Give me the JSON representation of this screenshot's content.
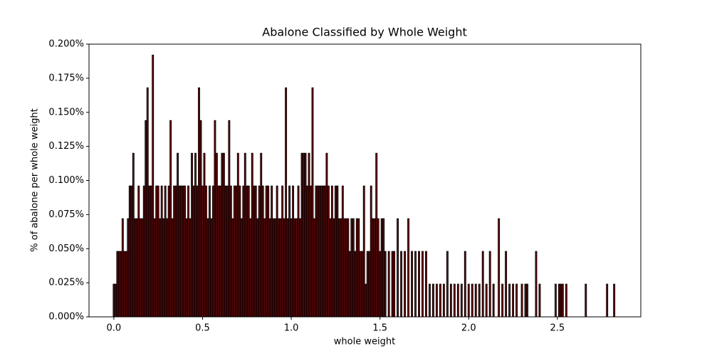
{
  "chart_data": {
    "type": "bar",
    "title": "Abalone Classified by Whole Weight",
    "xlabel": "whole weight",
    "ylabel": "% of abalone per whole weight",
    "color": "#7a0a0a",
    "edgecolor": "#000000",
    "x": [
      0,
      0.01,
      0.02,
      0.03,
      0.04,
      0.05,
      0.06,
      0.07,
      0.08,
      0.09,
      0.1,
      0.11,
      0.12,
      0.13,
      0.14,
      0.15,
      0.16,
      0.17,
      0.18,
      0.19,
      0.2,
      0.21,
      0.22,
      0.23,
      0.24,
      0.25,
      0.26,
      0.27,
      0.28,
      0.29,
      0.3,
      0.31,
      0.32,
      0.33,
      0.34,
      0.35,
      0.36,
      0.37,
      0.38,
      0.39,
      0.4,
      0.41,
      0.42,
      0.43,
      0.44,
      0.45,
      0.46,
      0.47,
      0.48,
      0.49,
      0.5,
      0.51,
      0.52,
      0.53,
      0.54,
      0.55,
      0.56,
      0.57,
      0.58,
      0.59,
      0.6,
      0.61,
      0.62,
      0.63,
      0.64,
      0.65,
      0.66,
      0.67,
      0.68,
      0.69,
      0.7,
      0.71,
      0.72,
      0.73,
      0.74,
      0.75,
      0.76,
      0.77,
      0.78,
      0.79,
      0.8,
      0.81,
      0.82,
      0.83,
      0.84,
      0.85,
      0.86,
      0.87,
      0.88,
      0.89,
      0.9,
      0.91,
      0.92,
      0.93,
      0.94,
      0.95,
      0.96,
      0.97,
      0.98,
      0.99,
      1,
      1.01,
      1.02,
      1.03,
      1.04,
      1.05,
      1.06,
      1.07,
      1.08,
      1.09,
      1.1,
      1.11,
      1.12,
      1.13,
      1.14,
      1.15,
      1.16,
      1.17,
      1.18,
      1.19,
      1.2,
      1.21,
      1.22,
      1.23,
      1.24,
      1.25,
      1.26,
      1.27,
      1.28,
      1.29,
      1.3,
      1.31,
      1.32,
      1.33,
      1.34,
      1.35,
      1.36,
      1.37,
      1.38,
      1.39,
      1.4,
      1.41,
      1.42,
      1.43,
      1.44,
      1.45,
      1.46,
      1.47,
      1.48,
      1.49,
      1.5,
      1.51,
      1.52,
      1.53,
      1.55,
      1.57,
      1.58,
      1.6,
      1.62,
      1.64,
      1.66,
      1.68,
      1.7,
      1.72,
      1.74,
      1.76,
      1.78,
      1.8,
      1.82,
      1.84,
      1.86,
      1.88,
      1.9,
      1.92,
      1.94,
      1.96,
      1.98,
      2,
      2.02,
      2.04,
      2.06,
      2.08,
      2.1,
      2.12,
      2.14,
      2.17,
      2.19,
      2.21,
      2.23,
      2.25,
      2.27,
      2.3,
      2.32,
      2.33,
      2.38,
      2.4,
      2.49,
      2.51,
      2.52,
      2.53,
      2.55,
      2.66,
      2.78,
      2.82
    ],
    "values": [
      0.024,
      0.024,
      0.048,
      0.048,
      0.048,
      0.072,
      0.048,
      0.048,
      0.072,
      0.096,
      0.096,
      0.12,
      0.072,
      0.072,
      0.096,
      0.072,
      0.072,
      0.096,
      0.144,
      0.168,
      0.096,
      0.096,
      0.192,
      0.072,
      0.096,
      0.096,
      0.072,
      0.096,
      0.072,
      0.096,
      0.072,
      0.096,
      0.144,
      0.072,
      0.096,
      0.096,
      0.12,
      0.096,
      0.096,
      0.096,
      0.096,
      0.072,
      0.096,
      0.072,
      0.12,
      0.096,
      0.12,
      0.096,
      0.168,
      0.144,
      0.096,
      0.12,
      0.096,
      0.072,
      0.096,
      0.072,
      0.096,
      0.144,
      0.12,
      0.096,
      0.096,
      0.12,
      0.12,
      0.096,
      0.096,
      0.144,
      0.096,
      0.072,
      0.096,
      0.096,
      0.12,
      0.096,
      0.072,
      0.096,
      0.12,
      0.096,
      0.096,
      0.072,
      0.12,
      0.096,
      0.096,
      0.072,
      0.096,
      0.12,
      0.096,
      0.072,
      0.096,
      0.096,
      0.072,
      0.096,
      0.072,
      0.072,
      0.096,
      0.072,
      0.072,
      0.096,
      0.072,
      0.168,
      0.072,
      0.096,
      0.072,
      0.096,
      0.072,
      0.072,
      0.096,
      0.072,
      0.12,
      0.12,
      0.12,
      0.096,
      0.12,
      0.096,
      0.168,
      0.072,
      0.096,
      0.096,
      0.096,
      0.096,
      0.096,
      0.096,
      0.12,
      0.096,
      0.072,
      0.096,
      0.072,
      0.096,
      0.096,
      0.072,
      0.072,
      0.096,
      0.072,
      0.072,
      0.072,
      0.048,
      0.072,
      0.072,
      0.048,
      0.072,
      0.072,
      0.048,
      0.048,
      0.096,
      0.024,
      0.048,
      0.048,
      0.096,
      0.072,
      0.072,
      0.12,
      0.072,
      0.048,
      0.072,
      0.072,
      0.048,
      0.048,
      0.048,
      0.048,
      0.072,
      0.048,
      0.048,
      0.072,
      0.048,
      0.048,
      0.048,
      0.048,
      0.048,
      0.024,
      0.024,
      0.024,
      0.024,
      0.024,
      0.048,
      0.024,
      0.024,
      0.024,
      0.024,
      0.048,
      0.024,
      0.024,
      0.024,
      0.024,
      0.048,
      0.024,
      0.048,
      0.024,
      0.072,
      0.024,
      0.048,
      0.024,
      0.024,
      0.024,
      0.024,
      0.024,
      0.024,
      0.048,
      0.024,
      0.024,
      0.024,
      0.024,
      0.024,
      0.024,
      0.024,
      0.024,
      0.024
    ],
    "xlim": [
      -0.14,
      2.97
    ],
    "xticks": [
      {
        "value": 0,
        "label": "0.0"
      },
      0.5,
      {
        "value": 1,
        "label": "1.0"
      },
      1.5,
      {
        "value": 2,
        "label": "2.0"
      },
      2.5
    ],
    "ylim": [
      0,
      0.2
    ],
    "yticks": [
      {
        "value": 0,
        "label": "0.000%"
      },
      {
        "value": 0.025,
        "label": "0.025%"
      },
      {
        "value": 0.05,
        "label": "0.050%"
      },
      {
        "value": 0.075,
        "label": "0.075%"
      },
      {
        "value": 0.1,
        "label": "0.100%"
      },
      {
        "value": 0.125,
        "label": "0.125%"
      },
      {
        "value": 0.15,
        "label": "0.150%"
      },
      {
        "value": 0.175,
        "label": "0.175%"
      },
      {
        "value": 0.2,
        "label": "0.200%"
      }
    ]
  }
}
